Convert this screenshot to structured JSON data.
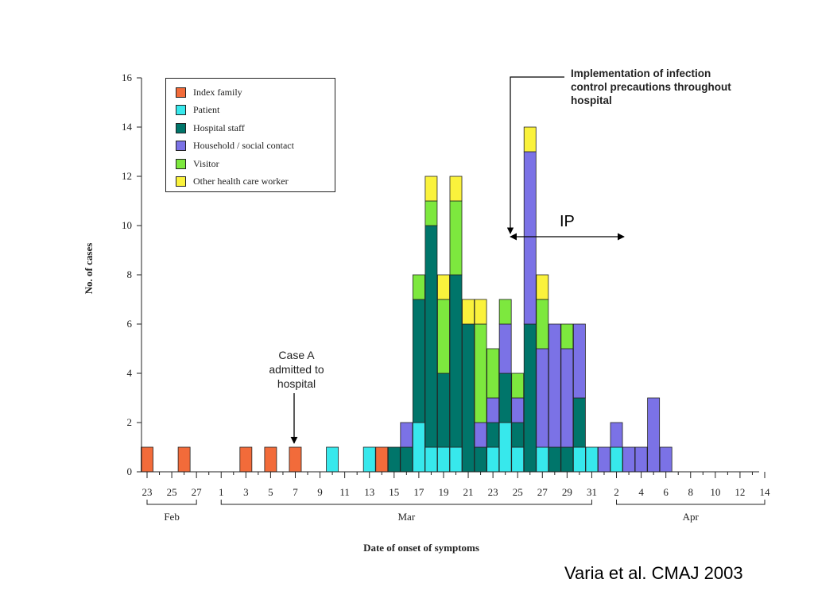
{
  "chart_data": {
    "type": "bar",
    "stacked": true,
    "xlabel": "Date of onset of symptoms",
    "ylabel": "No. of cases",
    "ylim": [
      0,
      16
    ],
    "yticks": [
      0,
      2,
      4,
      6,
      8,
      10,
      12,
      14,
      16
    ],
    "categories": [
      "Feb 23",
      "Feb 24",
      "Feb 25",
      "Feb 26",
      "Feb 27",
      "Feb 28",
      "Mar 1",
      "Mar 2",
      "Mar 3",
      "Mar 4",
      "Mar 5",
      "Mar 6",
      "Mar 7",
      "Mar 8",
      "Mar 9",
      "Mar 10",
      "Mar 11",
      "Mar 12",
      "Mar 13",
      "Mar 14",
      "Mar 15",
      "Mar 16",
      "Mar 17",
      "Mar 18",
      "Mar 19",
      "Mar 20",
      "Mar 21",
      "Mar 22",
      "Mar 23",
      "Mar 24",
      "Mar 25",
      "Mar 26",
      "Mar 27",
      "Mar 28",
      "Mar 29",
      "Mar 30",
      "Mar 31",
      "Apr 1",
      "Apr 2",
      "Apr 3",
      "Apr 4",
      "Apr 5",
      "Apr 6",
      "Apr 7",
      "Apr 8",
      "Apr 9",
      "Apr 10",
      "Apr 11",
      "Apr 12",
      "Apr 13",
      "Apr 14"
    ],
    "tick_labels": [
      "23",
      "25",
      "27",
      "1",
      "3",
      "5",
      "7",
      "9",
      "11",
      "13",
      "15",
      "17",
      "19",
      "21",
      "23",
      "25",
      "27",
      "29",
      "31",
      "2",
      "4",
      "6",
      "8",
      "10",
      "12",
      "14"
    ],
    "month_labels": [
      "Feb",
      "Mar",
      "Apr"
    ],
    "series": [
      {
        "name": "Index family",
        "color": "#f26b3a",
        "values": [
          1,
          0,
          0,
          1,
          0,
          0,
          0,
          0,
          1,
          0,
          1,
          0,
          1,
          0,
          0,
          0,
          0,
          0,
          0,
          1,
          0,
          0,
          0,
          0,
          0,
          0,
          0,
          0,
          0,
          0,
          0,
          0,
          0,
          0,
          0,
          0,
          0,
          0,
          0,
          0,
          0,
          0,
          0,
          0,
          0,
          0,
          0,
          0,
          0,
          0,
          0
        ]
      },
      {
        "name": "Patient",
        "color": "#37e8ec",
        "values": [
          0,
          0,
          0,
          0,
          0,
          0,
          0,
          0,
          0,
          0,
          0,
          0,
          0,
          0,
          0,
          1,
          0,
          0,
          1,
          0,
          0,
          0,
          2,
          1,
          1,
          1,
          0,
          0,
          1,
          2,
          1,
          0,
          1,
          0,
          0,
          1,
          1,
          0,
          1,
          0,
          0,
          0,
          0,
          0,
          0,
          0,
          0,
          0,
          0,
          0,
          0
        ]
      },
      {
        "name": "Hospital staff",
        "color": "#00756a",
        "values": [
          0,
          0,
          0,
          0,
          0,
          0,
          0,
          0,
          0,
          0,
          0,
          0,
          0,
          0,
          0,
          0,
          0,
          0,
          0,
          0,
          1,
          1,
          5,
          9,
          3,
          7,
          6,
          1,
          1,
          2,
          1,
          6,
          0,
          1,
          1,
          2,
          0,
          0,
          0,
          0,
          0,
          0,
          0,
          0,
          0,
          0,
          0,
          0,
          0,
          0,
          0
        ]
      },
      {
        "name": "Household / social contact",
        "color": "#7b72e6",
        "values": [
          0,
          0,
          0,
          0,
          0,
          0,
          0,
          0,
          0,
          0,
          0,
          0,
          0,
          0,
          0,
          0,
          0,
          0,
          0,
          0,
          0,
          1,
          0,
          0,
          0,
          0,
          0,
          1,
          1,
          2,
          1,
          7,
          4,
          5,
          4,
          3,
          0,
          1,
          1,
          1,
          1,
          3,
          1,
          0,
          0,
          0,
          0,
          0,
          0,
          0,
          0
        ]
      },
      {
        "name": "Visitor",
        "color": "#7de83e",
        "values": [
          0,
          0,
          0,
          0,
          0,
          0,
          0,
          0,
          0,
          0,
          0,
          0,
          0,
          0,
          0,
          0,
          0,
          0,
          0,
          0,
          0,
          0,
          1,
          1,
          3,
          3,
          0,
          4,
          2,
          1,
          1,
          0,
          2,
          0,
          1,
          0,
          0,
          0,
          0,
          0,
          0,
          0,
          0,
          0,
          0,
          0,
          0,
          0,
          0,
          0,
          0
        ]
      },
      {
        "name": "Other health care worker",
        "color": "#faf23c",
        "values": [
          0,
          0,
          0,
          0,
          0,
          0,
          0,
          0,
          0,
          0,
          0,
          0,
          0,
          0,
          0,
          0,
          0,
          0,
          0,
          0,
          0,
          0,
          0,
          1,
          1,
          1,
          1,
          1,
          0,
          0,
          0,
          1,
          1,
          0,
          0,
          0,
          0,
          0,
          0,
          0,
          0,
          0,
          0,
          0,
          0,
          0,
          0,
          0,
          0,
          0,
          0
        ]
      }
    ],
    "annotations": {
      "implementation": "Implementation of infection\ncontrol precautions throughout\nhospital",
      "case_a": "Case A\nadmitted to\nhospital",
      "ip": "IP"
    }
  },
  "citation": "Varia et al. CMAJ 2003"
}
